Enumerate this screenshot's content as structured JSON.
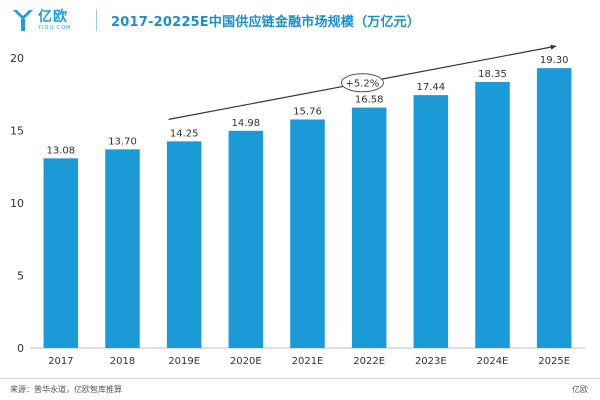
{
  "header": {
    "logo_cn": "亿欧",
    "logo_en": "YIOU.COM",
    "title": "2017-20225E中国供应链金融市场规模（万亿元）"
  },
  "footer": {
    "source": "来源：普华永道，亿欧智库推算",
    "brand": "亿欧"
  },
  "colors": {
    "bar": "#1a9bd7",
    "accent": "#1a8fd0",
    "trend_line": "#333333"
  },
  "chart_data": {
    "type": "bar",
    "title": "",
    "xlabel": "",
    "ylabel": "",
    "categories": [
      "2017",
      "2018",
      "2019E",
      "2020E",
      "2021E",
      "2022E",
      "2023E",
      "2024E",
      "2025E"
    ],
    "values": [
      13.08,
      13.7,
      14.25,
      14.98,
      15.76,
      16.58,
      17.44,
      18.35,
      19.3
    ],
    "value_labels": [
      "13.08",
      "13.70",
      "14.25",
      "14.98",
      "15.76",
      "16.58",
      "17.44",
      "18.35",
      "19.30"
    ],
    "ylim": [
      0,
      20
    ],
    "yticks": [
      "0",
      "5",
      "10",
      "15",
      "20"
    ],
    "annotation": {
      "text": "+5.2%",
      "from_category": "2019E",
      "to_category": "2025E"
    },
    "grid": false,
    "legend": "none"
  }
}
